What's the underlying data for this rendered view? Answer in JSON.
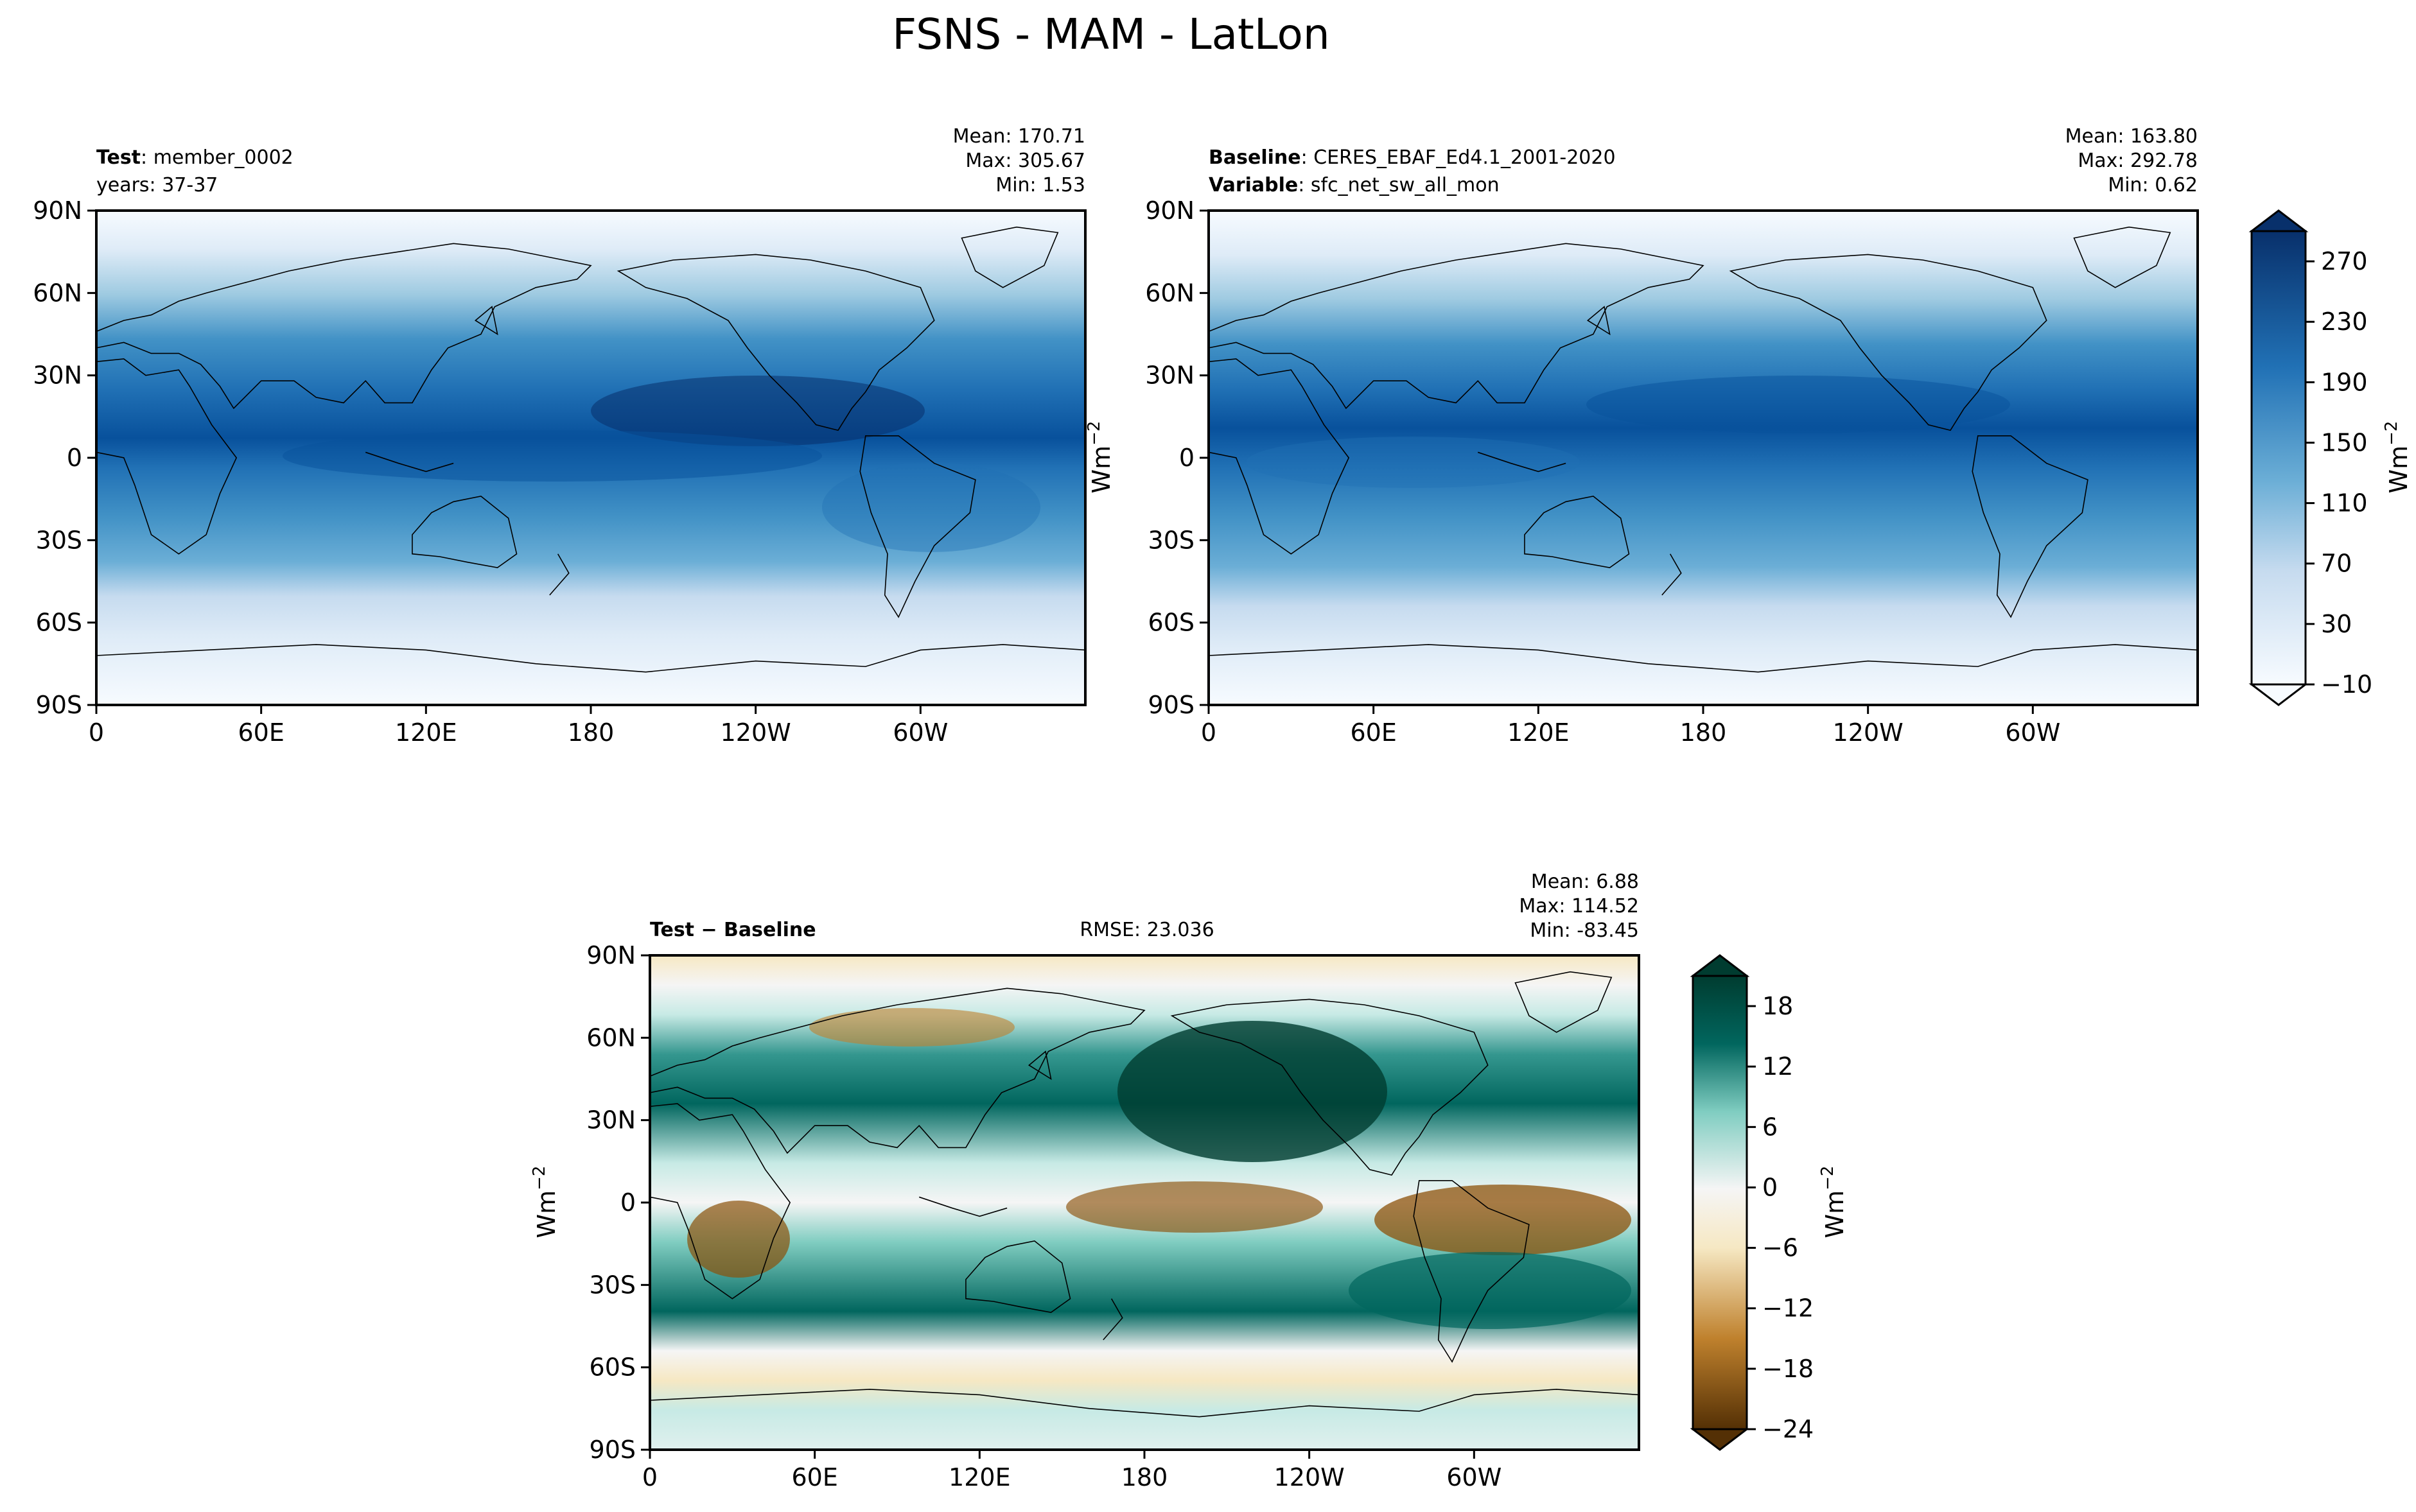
{
  "figure": {
    "title": "FSNS - MAM - LatLon"
  },
  "chart_data": [
    {
      "type": "heatmap",
      "panel": "test",
      "left_header": {
        "label_bold": "Test",
        "label_value": "member_0002",
        "line2": "years: 37-37"
      },
      "stats": {
        "mean": "Mean: 170.71",
        "max": "Max: 305.67",
        "min": "Min:  1.53"
      },
      "mean": 170.71,
      "max": 305.67,
      "min": 1.53,
      "xticks": [
        "0",
        "60E",
        "120E",
        "180",
        "120W",
        "60W"
      ],
      "yticks": [
        "90N",
        "60N",
        "30N",
        "0",
        "30S",
        "60S",
        "90S"
      ],
      "xlim": [
        0,
        360
      ],
      "ylim": [
        -90,
        90
      ],
      "ylabel": "Wm",
      "units_sup": "−2",
      "colormap": "Blues"
    },
    {
      "type": "heatmap",
      "panel": "baseline",
      "left_header": {
        "label_bold": "Baseline",
        "label_value": "CERES_EBAF_Ed4.1_2001-2020",
        "line2_bold": "Variable",
        "line2_value": "sfc_net_sw_all_mon"
      },
      "stats": {
        "mean": "Mean: 163.80",
        "max": "Max: 292.78",
        "min": "Min:  0.62"
      },
      "mean": 163.8,
      "max": 292.78,
      "min": 0.62,
      "xticks": [
        "0",
        "60E",
        "120E",
        "180",
        "120W",
        "60W"
      ],
      "yticks": [
        "90N",
        "60N",
        "30N",
        "0",
        "30S",
        "60S",
        "90S"
      ],
      "xlim": [
        0,
        360
      ],
      "ylim": [
        -90,
        90
      ],
      "colormap": "Blues",
      "colorbar": {
        "ticks": [
          "−10",
          "30",
          "70",
          "110",
          "150",
          "190",
          "230",
          "270"
        ],
        "range": [
          -10,
          290
        ],
        "label": "Wm",
        "label_sup": "−2",
        "extend": "both"
      }
    },
    {
      "type": "heatmap",
      "panel": "difference",
      "left_header": {
        "label_bold": "Test − Baseline"
      },
      "center_header": "RMSE: 23.036",
      "rmse": 23.036,
      "stats": {
        "mean": "Mean:  6.88",
        "max": "Max: 114.52",
        "min": "Min: -83.45"
      },
      "mean": 6.88,
      "max": 114.52,
      "min": -83.45,
      "xticks": [
        "0",
        "60E",
        "120E",
        "180",
        "120W",
        "60W"
      ],
      "yticks": [
        "90N",
        "60N",
        "30N",
        "0",
        "30S",
        "60S",
        "90S"
      ],
      "xlim": [
        0,
        360
      ],
      "ylim": [
        -90,
        90
      ],
      "ylabel": "Wm",
      "units_sup": "−2",
      "colormap": "BrBG",
      "colorbar": {
        "ticks": [
          "−24",
          "−18",
          "−12",
          "−6",
          "0",
          "6",
          "12",
          "18"
        ],
        "range": [
          -24,
          21
        ],
        "label": "Wm",
        "label_sup": "−2",
        "extend": "both"
      }
    }
  ],
  "colors": {
    "blues": [
      "#f7fbff",
      "#deebf7",
      "#c6dbef",
      "#9ecae1",
      "#6baed6",
      "#4292c6",
      "#2171b5",
      "#08519c",
      "#08306b"
    ],
    "brbg": [
      "#543005",
      "#8c510a",
      "#bf812d",
      "#dfc27d",
      "#f6e8c3",
      "#f5f5f5",
      "#c7eae5",
      "#80cdc1",
      "#35978f",
      "#01665e",
      "#003c30"
    ],
    "coast": "#000000"
  }
}
